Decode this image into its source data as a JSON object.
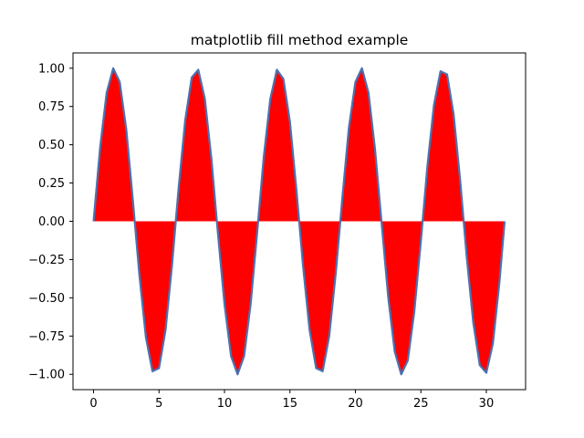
{
  "chart_data": {
    "type": "area",
    "title": "matplotlib fill method example",
    "xlabel": "",
    "ylabel": "",
    "xlim": [
      -1.57,
      33.0
    ],
    "ylim": [
      -1.1,
      1.1
    ],
    "x_ticks": [
      0,
      5,
      10,
      15,
      20,
      25,
      30
    ],
    "x_tick_labels": [
      "0",
      "5",
      "10",
      "15",
      "20",
      "25",
      "30"
    ],
    "y_ticks": [
      1.0,
      0.75,
      0.5,
      0.25,
      0.0,
      -0.25,
      -0.5,
      -0.75,
      -1.0
    ],
    "y_tick_labels": [
      "1.00",
      "0.75",
      "0.50",
      "0.25",
      "0.00",
      "−0.25",
      "−0.50",
      "−0.75",
      "−1.00"
    ],
    "grid": false,
    "line_color": "#4c72b0",
    "fill_color": "#ff0000",
    "series": [
      {
        "x": [
          0.0,
          0.5,
          1.0,
          1.5,
          2.0,
          2.5,
          3.0,
          3.5,
          4.0,
          4.5,
          5.0,
          5.5,
          6.0,
          6.5,
          7.0,
          7.5,
          8.0,
          8.5,
          9.0,
          9.5,
          10.0,
          10.5,
          11.0,
          11.5,
          12.0,
          12.5,
          13.0,
          13.5,
          14.0,
          14.5,
          15.0,
          15.5,
          16.0,
          16.5,
          17.0,
          17.5,
          18.0,
          18.5,
          19.0,
          19.5,
          20.0,
          20.5,
          21.0,
          21.5,
          22.0,
          22.5,
          23.0,
          23.5,
          24.0,
          24.5,
          25.0,
          25.5,
          26.0,
          26.5,
          27.0,
          27.5,
          28.0,
          28.5,
          29.0,
          29.5,
          30.0,
          30.5,
          31.0,
          31.4
        ],
        "y": [
          0.0,
          0.48,
          0.84,
          1.0,
          0.91,
          0.6,
          0.14,
          -0.35,
          -0.76,
          -0.98,
          -0.96,
          -0.71,
          -0.28,
          0.22,
          0.66,
          0.94,
          0.99,
          0.8,
          0.41,
          -0.08,
          -0.54,
          -0.88,
          -1.0,
          -0.88,
          -0.54,
          -0.07,
          0.42,
          0.8,
          0.99,
          0.93,
          0.65,
          0.2,
          -0.29,
          -0.71,
          -0.96,
          -0.98,
          -0.75,
          -0.34,
          0.15,
          0.61,
          0.91,
          1.0,
          0.84,
          0.47,
          -0.01,
          -0.49,
          -0.85,
          -1.0,
          -0.91,
          -0.59,
          -0.13,
          0.36,
          0.76,
          0.98,
          0.96,
          0.7,
          0.27,
          -0.23,
          -0.66,
          -0.94,
          -0.99,
          -0.8,
          -0.4,
          0.0
        ]
      }
    ]
  }
}
